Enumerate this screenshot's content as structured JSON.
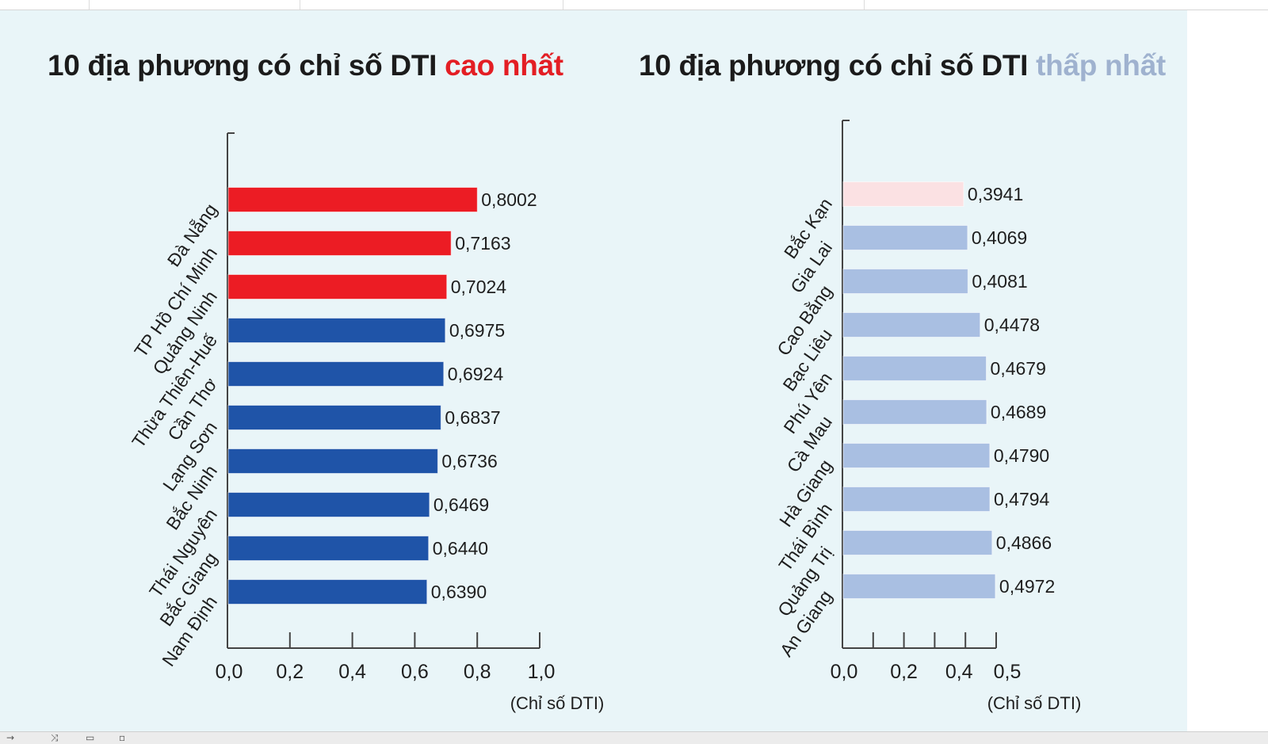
{
  "chart_data": [
    {
      "type": "bar",
      "orientation": "horizontal",
      "title_prefix": "10 địa phương có chỉ số DTI ",
      "title_highlight": "cao nhất",
      "categories": [
        "Đà Nẵng",
        "TP Hồ Chí Minh",
        "Quảng Ninh",
        "Thừa Thiên-Huế",
        "Cần Thơ",
        "Lạng Sơn",
        "Bắc Ninh",
        "Thái Nguyên",
        "Bắc Giang",
        "Nam Định"
      ],
      "values": [
        0.8002,
        0.7163,
        0.7024,
        0.6975,
        0.6924,
        0.6837,
        0.6736,
        0.6469,
        0.644,
        0.639
      ],
      "value_labels": [
        "0,8002",
        "0,7163",
        "0,7024",
        "0,6975",
        "0,6924",
        "0,6837",
        "0,6736",
        "0,6469",
        "0,6440",
        "0,6390"
      ],
      "bar_colors": [
        "#ec1c24",
        "#ec1c24",
        "#ec1c24",
        "#1f54a8",
        "#1f54a8",
        "#1f54a8",
        "#1f54a8",
        "#1f54a8",
        "#1f54a8",
        "#1f54a8"
      ],
      "xlim": [
        0,
        1.0
      ],
      "xticks": [
        0,
        0.2,
        0.4,
        0.6,
        0.8,
        1.0
      ],
      "xtick_labels": [
        "0,0",
        "0,2",
        "0,4",
        "0,6",
        "0,8",
        "1,0"
      ],
      "xlabel": "(Chỉ số DTI)",
      "grid": false,
      "title_highlight_color": "#e31e24"
    },
    {
      "type": "bar",
      "orientation": "horizontal",
      "title_prefix": "10 địa phương có chỉ số DTI ",
      "title_highlight": "thấp nhất",
      "categories": [
        "Bắc Kạn",
        "Gia Lai",
        "Cao Bằng",
        "Bạc Liêu",
        "Phú Yên",
        "Cà Mau",
        "Hà Giang",
        "Thái Bình",
        "Quảng Trị",
        "An Giang"
      ],
      "values": [
        0.3941,
        0.4069,
        0.4081,
        0.4478,
        0.4679,
        0.4689,
        0.479,
        0.4794,
        0.4866,
        0.4972
      ],
      "value_labels": [
        "0,3941",
        "0,4069",
        "0,4081",
        "0,4478",
        "0,4679",
        "0,4689",
        "0,4790",
        "0,4794",
        "0,4866",
        "0,4972"
      ],
      "bar_colors": [
        "#fbe1e3",
        "#a9bfe2",
        "#a9bfe2",
        "#a9bfe2",
        "#a9bfe2",
        "#a9bfe2",
        "#a9bfe2",
        "#a9bfe2",
        "#a9bfe2",
        "#a9bfe2"
      ],
      "xlim": [
        0,
        0.5
      ],
      "xticks": [
        0,
        0.1,
        0.2,
        0.3,
        0.4,
        0.5
      ],
      "xtick_labels": [
        "0,0",
        "",
        "0,2",
        "",
        "0,4",
        "0,5"
      ],
      "xlabel": "(Chỉ số DTI)",
      "grid": false,
      "title_highlight_color": "#9fb2cf"
    }
  ]
}
